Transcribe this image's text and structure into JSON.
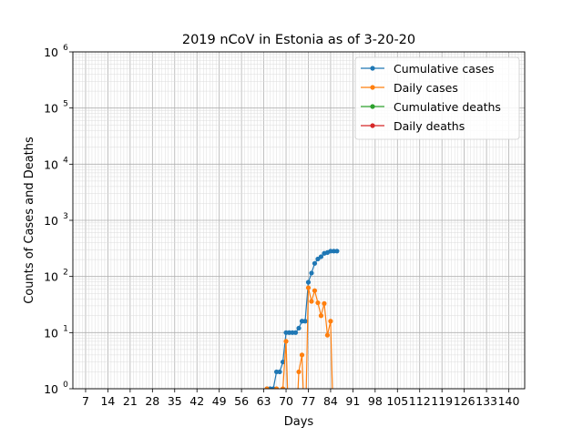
{
  "chart_data": {
    "type": "line",
    "title": "2019 nCoV in Estonia as of 3-20-20",
    "xlabel": "Days",
    "ylabel": "Counts of Cases and Deaths",
    "yscale": "log",
    "xlim": [
      3,
      145
    ],
    "ylim": [
      1,
      1000000
    ],
    "grid": true,
    "legend_position": "top-right",
    "x_ticks": [
      7,
      14,
      21,
      28,
      35,
      42,
      49,
      56,
      63,
      70,
      77,
      84,
      91,
      98,
      105,
      112,
      119,
      126,
      133,
      140
    ],
    "x_tick_labels": [
      "7",
      "14",
      "21",
      "28",
      "35",
      "42",
      "49",
      "56",
      "63",
      "70",
      "77",
      "84",
      "91",
      "98",
      "105",
      "112",
      "119",
      "126",
      "133",
      "140"
    ],
    "y_ticks": [
      1,
      10,
      100,
      1000,
      10000,
      100000,
      1000000
    ],
    "y_tick_labels": [
      {
        "base": "10",
        "exp": "0"
      },
      {
        "base": "10",
        "exp": "1"
      },
      {
        "base": "10",
        "exp": "2"
      },
      {
        "base": "10",
        "exp": "3"
      },
      {
        "base": "10",
        "exp": "4"
      },
      {
        "base": "10",
        "exp": "5"
      },
      {
        "base": "10",
        "exp": "6"
      }
    ],
    "series": [
      {
        "name": "Cumulative cases",
        "color": "#1f77b4",
        "x": [
          62,
          63,
          64,
          65,
          66,
          67,
          68,
          69,
          70,
          71,
          72,
          73,
          74,
          75,
          76,
          77,
          78,
          79,
          80,
          81,
          82,
          83,
          84,
          85,
          86
        ],
        "y": [
          0,
          0,
          1,
          1,
          1,
          2,
          2,
          3,
          10,
          10,
          10,
          10,
          12,
          16,
          16,
          79,
          115,
          171,
          205,
          225,
          258,
          267,
          283,
          283,
          283
        ]
      },
      {
        "name": "Daily cases",
        "color": "#ff7f0e",
        "x": [
          62,
          63,
          64,
          65,
          66,
          67,
          68,
          69,
          70,
          71,
          72,
          73,
          74,
          75,
          76,
          77,
          78,
          79,
          80,
          81,
          82,
          83,
          84,
          85,
          86
        ],
        "y": [
          0,
          0,
          1,
          0,
          0,
          1,
          0,
          1,
          7,
          0,
          0,
          0,
          2,
          4,
          0,
          63,
          36,
          56,
          34,
          20,
          33,
          9,
          16,
          0,
          0
        ]
      },
      {
        "name": "Cumulative deaths",
        "color": "#2ca02c",
        "x": [],
        "y": []
      },
      {
        "name": "Daily deaths",
        "color": "#d62728",
        "x": [],
        "y": []
      }
    ]
  }
}
